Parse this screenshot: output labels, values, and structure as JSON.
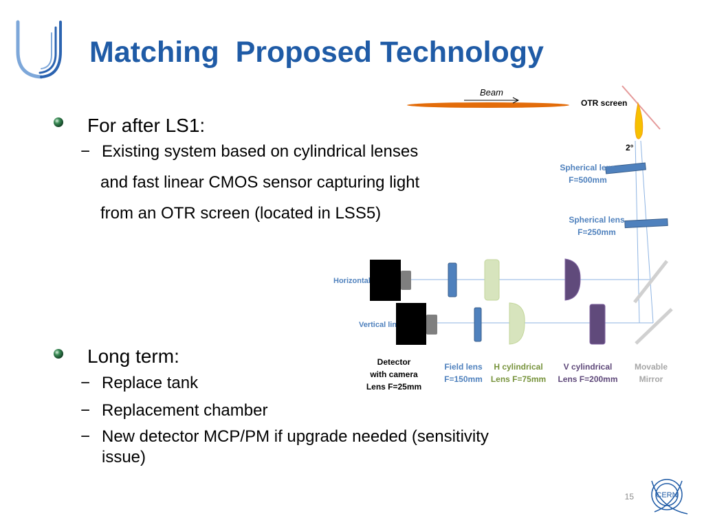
{
  "header": {
    "title": "Matching  Proposed Technology"
  },
  "sections": [
    {
      "heading": "For after LS1:",
      "items": [
        [
          "Existing system based on cylindrical lenses",
          "and fast linear CMOS sensor capturing light",
          "from an OTR screen (located in LSS5)"
        ]
      ]
    },
    {
      "heading": "Long term:",
      "items": [
        [
          "Replace tank"
        ],
        [
          "Replacement chamber"
        ],
        [
          "New detector MCP/PM if upgrade needed (sensitivity",
          "issue)"
        ]
      ]
    }
  ],
  "item_marker": "−",
  "diagram": {
    "beam": "Beam",
    "otr_screen": "OTR screen",
    "angle": "2°",
    "spherical_lens_1": [
      "Spherical lens",
      "F=500mm"
    ],
    "spherical_lens_2": [
      "Spherical lens",
      "F=250mm"
    ],
    "horizontal_line": "Horizontal line",
    "vertical_line": "Vertical line",
    "detector": [
      "Detector",
      "with camera",
      "Lens F=25mm"
    ],
    "field_lens": [
      "Field lens",
      "F=150mm"
    ],
    "h_cylindrical": [
      "H cylindrical",
      "Lens F=75mm"
    ],
    "v_cylindrical": [
      "V cylindrical",
      "Lens F=200mm"
    ],
    "mirror": [
      "Movable",
      "Mirror"
    ]
  },
  "footer": {
    "page_number": "15",
    "logo_text": "CERN"
  }
}
